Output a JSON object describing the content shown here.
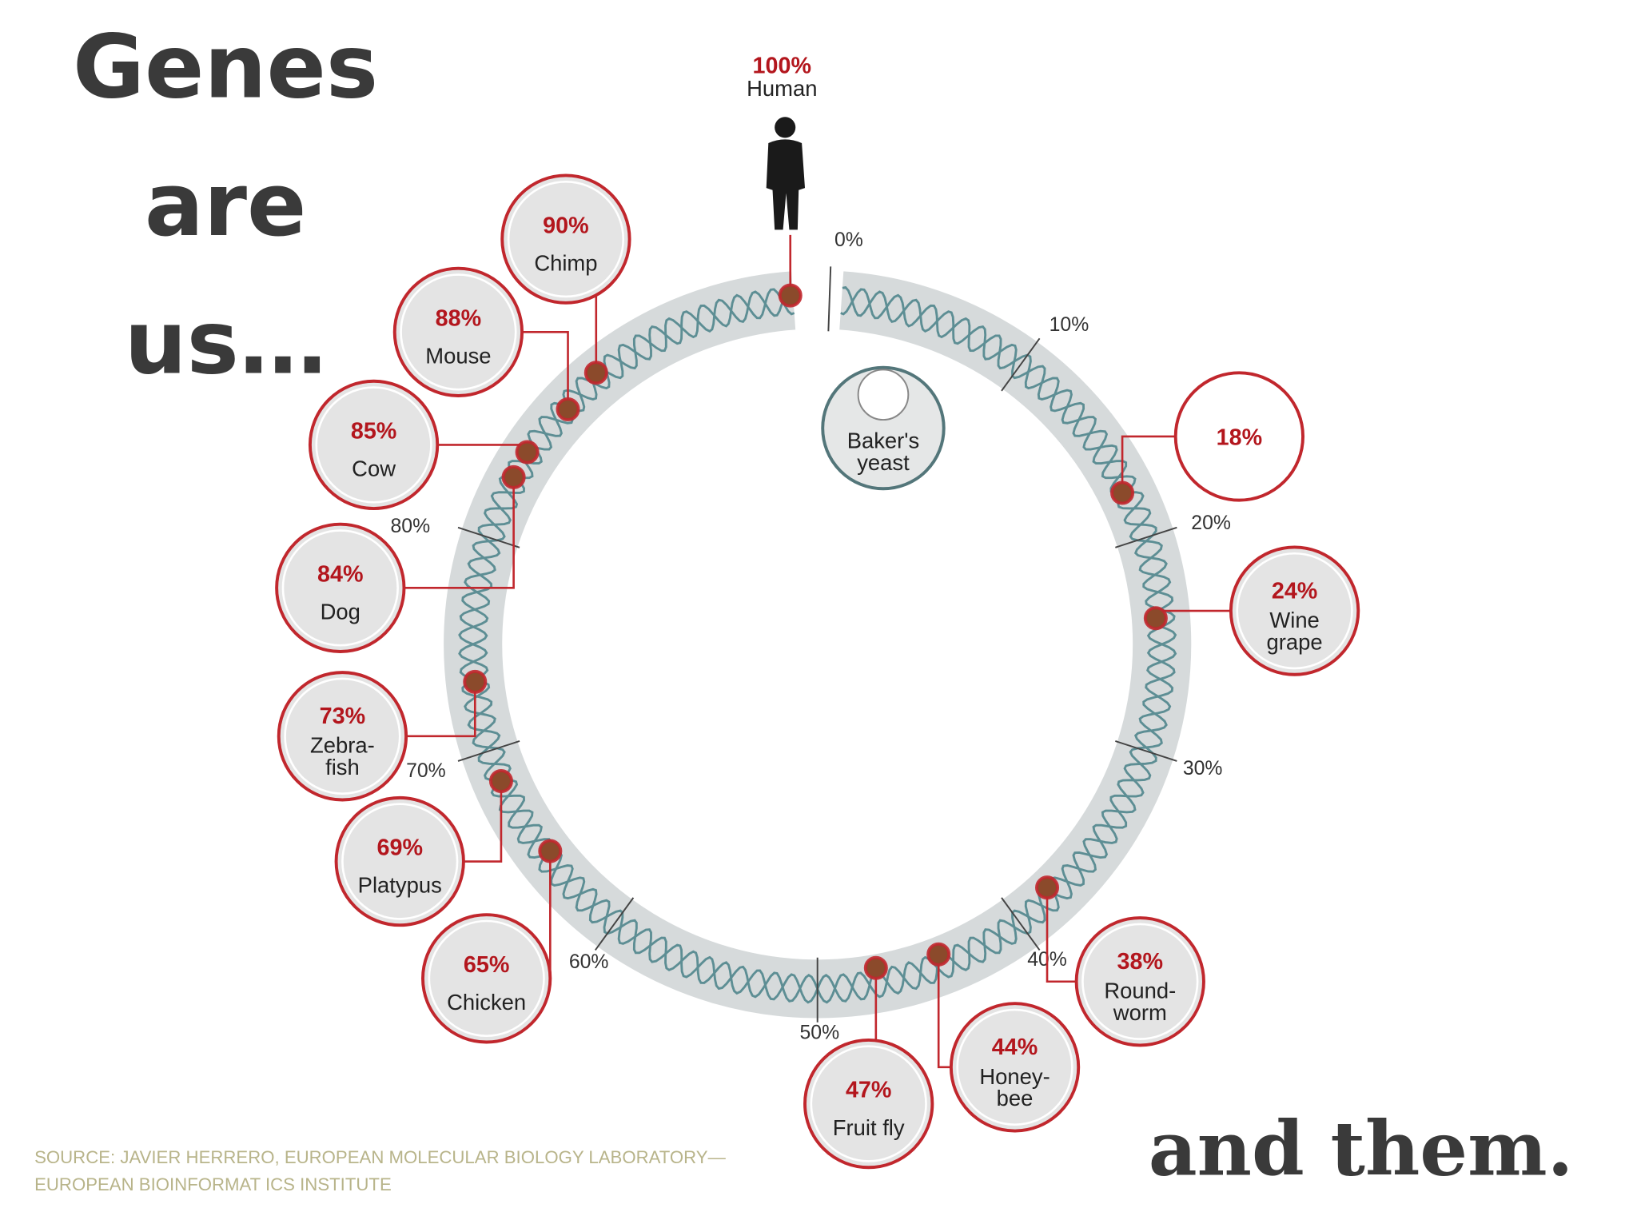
{
  "title_lines": [
    "Genes",
    "are",
    "us…"
  ],
  "closing": "and them.",
  "source": [
    "SOURCE: JAVIER HERRERO, EUROPEAN MOLECULAR BIOLOGY LABORATORY—",
    "EUROPEAN BIOINFORMAT ICS INSTITUTE"
  ],
  "ring_ticks": [
    "0%",
    "10%",
    "20%",
    "30%",
    "40%",
    "50%",
    "60%",
    "70%",
    "80%"
  ],
  "yeast": [
    "Baker's",
    "yeast"
  ],
  "organisms": [
    {
      "percent": "100%",
      "name": [
        "Human"
      ]
    },
    {
      "percent": "90%",
      "name": [
        "Chimp"
      ]
    },
    {
      "percent": "88%",
      "name": [
        "Mouse"
      ]
    },
    {
      "percent": "85%",
      "name": [
        "Cow"
      ]
    },
    {
      "percent": "84%",
      "name": [
        "Dog"
      ]
    },
    {
      "percent": "73%",
      "name": [
        "Zebra-",
        "fish"
      ]
    },
    {
      "percent": "69%",
      "name": [
        "Platypus"
      ]
    },
    {
      "percent": "65%",
      "name": [
        "Chicken"
      ]
    },
    {
      "percent": "47%",
      "name": [
        "Fruit fly"
      ]
    },
    {
      "percent": "44%",
      "name": [
        "Honey-",
        "bee"
      ]
    },
    {
      "percent": "38%",
      "name": [
        "Round-",
        "worm"
      ]
    },
    {
      "percent": "24%",
      "name": [
        "Wine",
        "grape"
      ]
    },
    {
      "percent": "18%"
    }
  ]
}
